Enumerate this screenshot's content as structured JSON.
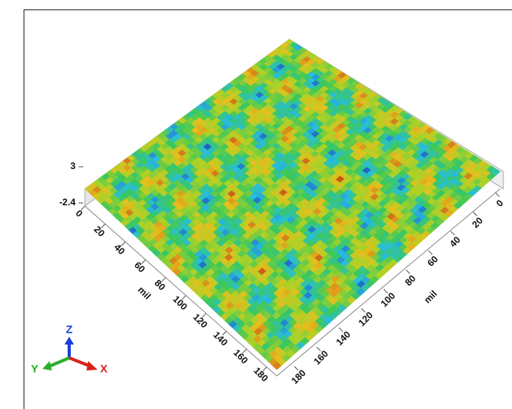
{
  "chart_data": {
    "type": "surface",
    "zlim": [
      -2.4,
      3
    ],
    "zticks": [
      3,
      -2.4
    ],
    "xlabel": "mil",
    "xlim": [
      0,
      190
    ],
    "xticks": [
      0,
      20,
      40,
      60,
      80,
      100,
      120,
      140,
      160,
      180
    ],
    "ylabel": "mil",
    "ylim": [
      0,
      190
    ],
    "yticks": [
      0,
      20,
      40,
      60,
      80,
      100,
      120,
      140,
      160,
      180
    ],
    "triad": {
      "x": "X",
      "y": "Y",
      "z": "Z"
    }
  }
}
